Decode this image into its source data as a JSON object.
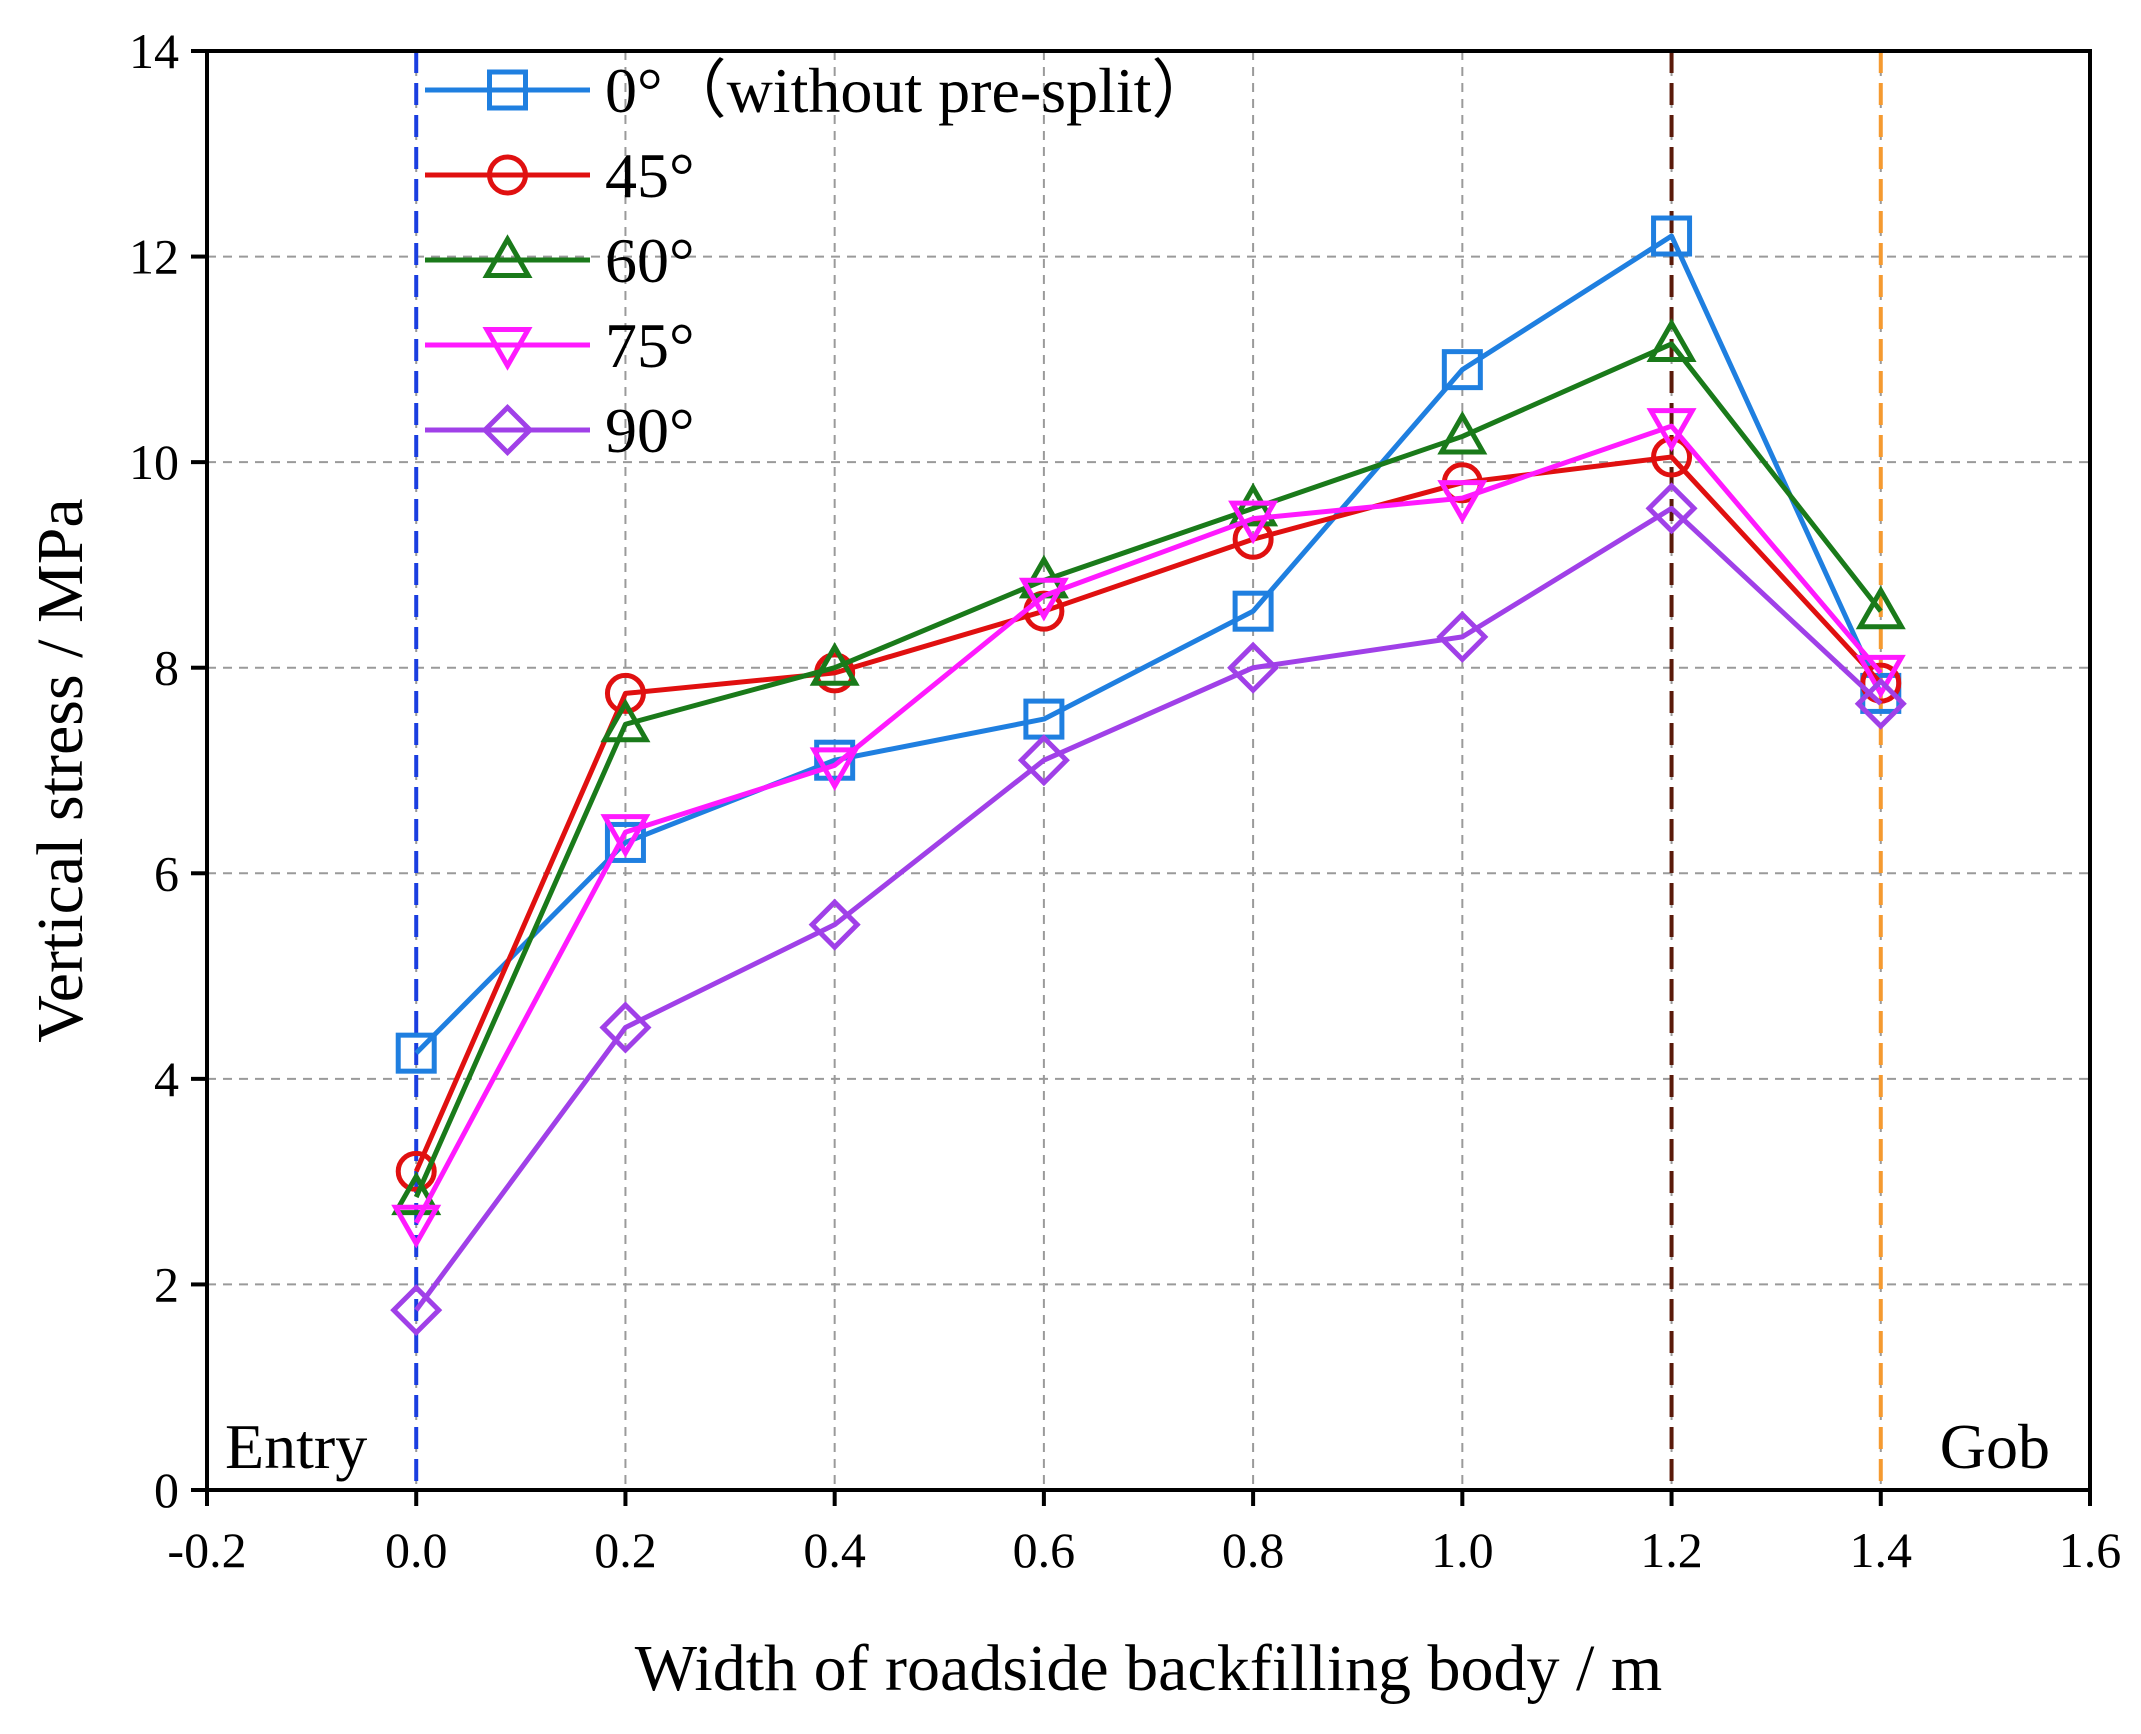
{
  "chart_data": {
    "type": "line",
    "title": "",
    "xlabel": "Width of roadside backfilling body / m",
    "ylabel": "Vertical stress / MPa",
    "xlim": [
      -0.2,
      1.6
    ],
    "ylim": [
      0,
      14
    ],
    "xticks": [
      -0.2,
      0.0,
      0.2,
      0.4,
      0.6,
      0.8,
      1.0,
      1.2,
      1.4,
      1.6
    ],
    "xtick_labels": [
      "-0.2",
      "0.0",
      "0.2",
      "0.4",
      "0.6",
      "0.8",
      "1.0",
      "1.2",
      "1.4",
      "1.6"
    ],
    "yticks": [
      0,
      2,
      4,
      6,
      8,
      10,
      12,
      14
    ],
    "ytick_labels": [
      "0",
      "2",
      "4",
      "6",
      "8",
      "10",
      "12",
      "14"
    ],
    "grid": true,
    "legend_position": "top-left",
    "x": [
      0.0,
      0.2,
      0.4,
      0.6,
      0.8,
      1.0,
      1.2,
      1.4
    ],
    "series": [
      {
        "name": "0°（without pre-split）",
        "color": "#1f7fe0",
        "marker": "square",
        "values": [
          4.25,
          6.3,
          7.1,
          7.5,
          8.55,
          10.9,
          12.2,
          7.75
        ]
      },
      {
        "name": "45°",
        "color": "#e01010",
        "marker": "circle",
        "values": [
          3.1,
          7.75,
          7.95,
          8.55,
          9.25,
          9.8,
          10.05,
          7.85
        ]
      },
      {
        "name": "60°",
        "color": "#1a7a1a",
        "marker": "triangle-up",
        "values": [
          2.85,
          7.45,
          8.0,
          8.85,
          9.55,
          10.25,
          11.15,
          8.55
        ]
      },
      {
        "name": "75°",
        "color": "#ff1aff",
        "marker": "triangle-down",
        "values": [
          2.6,
          6.4,
          7.05,
          8.7,
          9.45,
          9.65,
          10.35,
          7.95
        ]
      },
      {
        "name": "90°",
        "color": "#a040e8",
        "marker": "diamond",
        "values": [
          1.75,
          4.5,
          5.5,
          7.1,
          8.0,
          8.3,
          9.55,
          7.65
        ]
      }
    ],
    "vlines": [
      {
        "x": 0.0,
        "color": "#1a3ee0"
      },
      {
        "x": 1.2,
        "color": "#5a1a0a"
      },
      {
        "x": 1.4,
        "color": "#f59a30"
      }
    ],
    "annotations": [
      {
        "text": "Entry",
        "anchor": "bottom-left"
      },
      {
        "text": "Gob",
        "anchor": "bottom-right"
      }
    ]
  }
}
